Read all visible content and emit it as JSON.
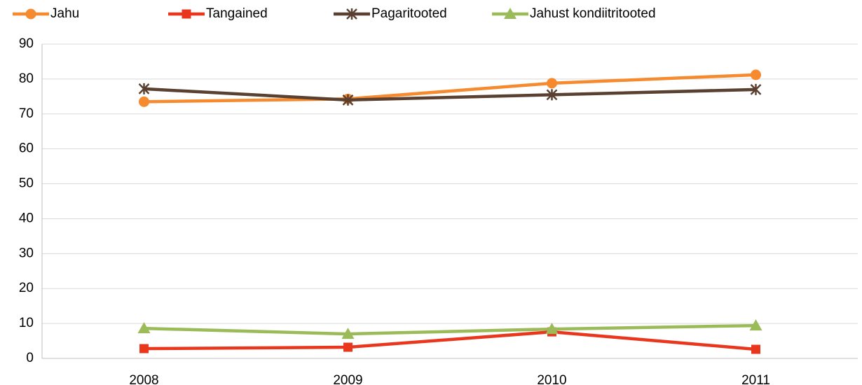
{
  "chart_data": {
    "type": "line",
    "categories": [
      "2008",
      "2009",
      "2010",
      "2011"
    ],
    "series": [
      {
        "name": "Jahu",
        "color": "#f58a2e",
        "marker": "circle",
        "values": [
          73.5,
          74.3,
          78.8,
          81.2
        ]
      },
      {
        "name": "Tangained",
        "color": "#e8371c",
        "marker": "square",
        "values": [
          2.8,
          3.2,
          7.6,
          2.6
        ]
      },
      {
        "name": "Pagaritooted",
        "color": "#5a4030",
        "marker": "asterisk",
        "values": [
          77.2,
          74.0,
          75.5,
          77.0
        ]
      },
      {
        "name": "Jahust kondiitritooted",
        "color": "#9bbb59",
        "marker": "triangle",
        "values": [
          8.6,
          7.0,
          8.4,
          9.4
        ]
      }
    ],
    "ylim": [
      0,
      90
    ],
    "yticks": [
      0,
      10,
      20,
      30,
      40,
      50,
      60,
      70,
      80,
      90
    ],
    "grid": true,
    "legend": "top"
  }
}
